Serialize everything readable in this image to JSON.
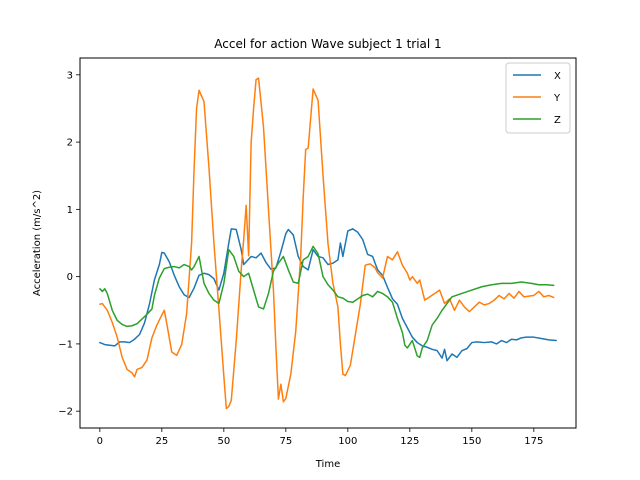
{
  "chart_data": {
    "type": "line",
    "title": "Accel for action Wave subject 1 trial 1",
    "xlabel": "Time",
    "ylabel": "Acceleration (m/s^2)",
    "xlim": [
      -8,
      192
    ],
    "ylim": [
      -2.25,
      3.25
    ],
    "xticks": [
      0,
      25,
      50,
      75,
      100,
      125,
      150,
      175
    ],
    "yticks": [
      -2,
      -1,
      0,
      1,
      2,
      3
    ],
    "grid": false,
    "legend_position": "top-right",
    "series": [
      {
        "name": "X",
        "color": "#1f77b4",
        "points": [
          [
            0,
            -0.98
          ],
          [
            2,
            -1.01
          ],
          [
            4,
            -1.02
          ],
          [
            6,
            -1.03
          ],
          [
            8,
            -0.97
          ],
          [
            10,
            -0.97
          ],
          [
            12,
            -0.98
          ],
          [
            14,
            -0.93
          ],
          [
            16,
            -0.86
          ],
          [
            18,
            -0.69
          ],
          [
            20,
            -0.41
          ],
          [
            22,
            -0.05
          ],
          [
            24,
            0.18
          ],
          [
            25,
            0.36
          ],
          [
            26,
            0.35
          ],
          [
            28,
            0.22
          ],
          [
            30,
            0.02
          ],
          [
            32,
            -0.15
          ],
          [
            34,
            -0.27
          ],
          [
            36,
            -0.31
          ],
          [
            38,
            -0.17
          ],
          [
            40,
            0.02
          ],
          [
            42,
            0.05
          ],
          [
            44,
            0.03
          ],
          [
            46,
            -0.03
          ],
          [
            48,
            -0.2
          ],
          [
            50,
            0.05
          ],
          [
            52,
            0.5
          ],
          [
            53,
            0.71
          ],
          [
            55,
            0.7
          ],
          [
            57,
            0.4
          ],
          [
            58,
            0.18
          ],
          [
            59,
            0.22
          ],
          [
            61,
            0.3
          ],
          [
            63,
            0.28
          ],
          [
            65,
            0.35
          ],
          [
            67,
            0.21
          ],
          [
            69,
            0.11
          ],
          [
            71,
            0.13
          ],
          [
            73,
            0.37
          ],
          [
            75,
            0.64
          ],
          [
            76,
            0.7
          ],
          [
            78,
            0.62
          ],
          [
            80,
            0.3
          ],
          [
            82,
            0.15
          ],
          [
            84,
            0.1
          ],
          [
            86,
            0.4
          ],
          [
            88,
            0.3
          ],
          [
            90,
            0.28
          ],
          [
            92,
            0.18
          ],
          [
            94,
            0.2
          ],
          [
            96,
            0.25
          ],
          [
            97,
            0.5
          ],
          [
            98,
            0.3
          ],
          [
            100,
            0.68
          ],
          [
            102,
            0.71
          ],
          [
            104,
            0.66
          ],
          [
            106,
            0.55
          ],
          [
            108,
            0.33
          ],
          [
            110,
            0.3
          ],
          [
            112,
            0.1
          ],
          [
            114,
            0.02
          ],
          [
            116,
            -0.16
          ],
          [
            118,
            -0.33
          ],
          [
            120,
            -0.41
          ],
          [
            122,
            -0.62
          ],
          [
            124,
            -0.76
          ],
          [
            126,
            -0.9
          ],
          [
            128,
            -0.98
          ],
          [
            130,
            -1.03
          ],
          [
            132,
            -1.05
          ],
          [
            134,
            -1.08
          ],
          [
            136,
            -1.1
          ],
          [
            138,
            -1.21
          ],
          [
            139,
            -1.08
          ],
          [
            140,
            -1.25
          ],
          [
            142,
            -1.15
          ],
          [
            144,
            -1.2
          ],
          [
            146,
            -1.1
          ],
          [
            148,
            -1.07
          ],
          [
            150,
            -0.98
          ],
          [
            152,
            -0.97
          ],
          [
            155,
            -0.98
          ],
          [
            158,
            -0.97
          ],
          [
            160,
            -1.0
          ],
          [
            162,
            -0.95
          ],
          [
            164,
            -0.98
          ],
          [
            166,
            -0.93
          ],
          [
            168,
            -0.94
          ],
          [
            170,
            -0.91
          ],
          [
            172,
            -0.9
          ],
          [
            175,
            -0.9
          ],
          [
            178,
            -0.92
          ],
          [
            181,
            -0.94
          ],
          [
            184,
            -0.95
          ]
        ]
      },
      {
        "name": "Y",
        "color": "#ff7f0e",
        "points": [
          [
            0,
            -0.41
          ],
          [
            1,
            -0.4
          ],
          [
            3,
            -0.5
          ],
          [
            5,
            -0.68
          ],
          [
            7,
            -0.9
          ],
          [
            9,
            -1.2
          ],
          [
            11,
            -1.38
          ],
          [
            13,
            -1.43
          ],
          [
            14,
            -1.49
          ],
          [
            15,
            -1.38
          ],
          [
            17,
            -1.35
          ],
          [
            19,
            -1.24
          ],
          [
            21,
            -0.91
          ],
          [
            23,
            -0.72
          ],
          [
            25,
            -0.57
          ],
          [
            26,
            -0.5
          ],
          [
            27,
            -0.7
          ],
          [
            29,
            -1.12
          ],
          [
            31,
            -1.17
          ],
          [
            33,
            -1.01
          ],
          [
            35,
            -0.55
          ],
          [
            37,
            0.5
          ],
          [
            38,
            1.6
          ],
          [
            39,
            2.5
          ],
          [
            40,
            2.77
          ],
          [
            42,
            2.6
          ],
          [
            44,
            1.62
          ],
          [
            46,
            0.5
          ],
          [
            48,
            -0.48
          ],
          [
            50,
            -1.48
          ],
          [
            51,
            -1.96
          ],
          [
            52,
            -1.93
          ],
          [
            53,
            -1.84
          ],
          [
            55,
            -0.95
          ],
          [
            57,
            0.1
          ],
          [
            58,
            0.55
          ],
          [
            59,
            1.06
          ],
          [
            60,
            0.31
          ],
          [
            61,
            1.99
          ],
          [
            62,
            2.5
          ],
          [
            63,
            2.93
          ],
          [
            64,
            2.95
          ],
          [
            66,
            2.22
          ],
          [
            68,
            1.0
          ],
          [
            70,
            -0.2
          ],
          [
            71,
            -1.05
          ],
          [
            72,
            -1.82
          ],
          [
            73,
            -1.6
          ],
          [
            74,
            -1.86
          ],
          [
            75,
            -1.81
          ],
          [
            77,
            -1.45
          ],
          [
            79,
            -0.81
          ],
          [
            81,
            0.31
          ],
          [
            82,
            1.18
          ],
          [
            83,
            1.89
          ],
          [
            84,
            1.91
          ],
          [
            86,
            2.79
          ],
          [
            88,
            2.62
          ],
          [
            90,
            1.5
          ],
          [
            92,
            0.49
          ],
          [
            94,
            -0.1
          ],
          [
            96,
            -0.45
          ],
          [
            97,
            -1.0
          ],
          [
            98,
            -1.45
          ],
          [
            99,
            -1.47
          ],
          [
            101,
            -1.32
          ],
          [
            103,
            -0.87
          ],
          [
            105,
            -0.42
          ],
          [
            107,
            0.17
          ],
          [
            109,
            0.19
          ],
          [
            111,
            0.13
          ],
          [
            112,
            0.06
          ],
          [
            114,
            -0.02
          ],
          [
            116,
            0.3
          ],
          [
            118,
            0.25
          ],
          [
            120,
            0.37
          ],
          [
            122,
            0.17
          ],
          [
            124,
            0.05
          ],
          [
            125,
            -0.05
          ],
          [
            126,
            0.0
          ],
          [
            128,
            -0.1
          ],
          [
            129,
            -0.05
          ],
          [
            131,
            -0.35
          ],
          [
            133,
            -0.3
          ],
          [
            135,
            -0.25
          ],
          [
            137,
            -0.2
          ],
          [
            139,
            -0.4
          ],
          [
            141,
            -0.33
          ],
          [
            143,
            -0.5
          ],
          [
            145,
            -0.35
          ],
          [
            147,
            -0.45
          ],
          [
            149,
            -0.52
          ],
          [
            151,
            -0.45
          ],
          [
            153,
            -0.38
          ],
          [
            155,
            -0.42
          ],
          [
            157,
            -0.4
          ],
          [
            159,
            -0.35
          ],
          [
            161,
            -0.28
          ],
          [
            163,
            -0.33
          ],
          [
            165,
            -0.25
          ],
          [
            167,
            -0.32
          ],
          [
            169,
            -0.22
          ],
          [
            171,
            -0.3
          ],
          [
            173,
            -0.29
          ],
          [
            175,
            -0.28
          ],
          [
            177,
            -0.22
          ],
          [
            179,
            -0.3
          ],
          [
            181,
            -0.28
          ],
          [
            183,
            -0.31
          ]
        ]
      },
      {
        "name": "Z",
        "color": "#2ca02c",
        "points": [
          [
            0,
            -0.18
          ],
          [
            1,
            -0.22
          ],
          [
            2,
            -0.18
          ],
          [
            3,
            -0.25
          ],
          [
            5,
            -0.5
          ],
          [
            7,
            -0.65
          ],
          [
            9,
            -0.71
          ],
          [
            11,
            -0.74
          ],
          [
            13,
            -0.73
          ],
          [
            15,
            -0.7
          ],
          [
            17,
            -0.63
          ],
          [
            19,
            -0.56
          ],
          [
            21,
            -0.48
          ],
          [
            22,
            -0.28
          ],
          [
            24,
            -0.02
          ],
          [
            26,
            0.12
          ],
          [
            28,
            0.14
          ],
          [
            30,
            0.15
          ],
          [
            32,
            0.13
          ],
          [
            34,
            0.18
          ],
          [
            36,
            0.15
          ],
          [
            37,
            0.1
          ],
          [
            38,
            0.15
          ],
          [
            40,
            0.3
          ],
          [
            42,
            -0.1
          ],
          [
            44,
            -0.25
          ],
          [
            46,
            -0.35
          ],
          [
            48,
            -0.4
          ],
          [
            50,
            -0.1
          ],
          [
            52,
            0.4
          ],
          [
            54,
            0.3
          ],
          [
            56,
            0.08
          ],
          [
            58,
            0.0
          ],
          [
            60,
            0.05
          ],
          [
            62,
            -0.2
          ],
          [
            64,
            -0.45
          ],
          [
            66,
            -0.48
          ],
          [
            68,
            -0.25
          ],
          [
            70,
            0.08
          ],
          [
            72,
            0.2
          ],
          [
            74,
            0.3
          ],
          [
            76,
            0.1
          ],
          [
            78,
            -0.08
          ],
          [
            80,
            -0.1
          ],
          [
            82,
            0.25
          ],
          [
            84,
            0.3
          ],
          [
            86,
            0.45
          ],
          [
            88,
            0.34
          ],
          [
            90,
            0.0
          ],
          [
            92,
            -0.12
          ],
          [
            94,
            -0.2
          ],
          [
            96,
            -0.3
          ],
          [
            98,
            -0.32
          ],
          [
            100,
            -0.37
          ],
          [
            102,
            -0.38
          ],
          [
            104,
            -0.33
          ],
          [
            106,
            -0.28
          ],
          [
            108,
            -0.26
          ],
          [
            110,
            -0.3
          ],
          [
            112,
            -0.22
          ],
          [
            114,
            -0.25
          ],
          [
            116,
            -0.3
          ],
          [
            118,
            -0.38
          ],
          [
            120,
            -0.62
          ],
          [
            122,
            -0.83
          ],
          [
            123,
            -1.02
          ],
          [
            124,
            -1.06
          ],
          [
            126,
            -0.95
          ],
          [
            128,
            -1.18
          ],
          [
            129,
            -1.2
          ],
          [
            130,
            -1.06
          ],
          [
            132,
            -0.95
          ],
          [
            134,
            -0.72
          ],
          [
            136,
            -0.62
          ],
          [
            138,
            -0.5
          ],
          [
            140,
            -0.4
          ],
          [
            142,
            -0.3
          ],
          [
            146,
            -0.25
          ],
          [
            150,
            -0.2
          ],
          [
            154,
            -0.15
          ],
          [
            158,
            -0.12
          ],
          [
            162,
            -0.1
          ],
          [
            166,
            -0.1
          ],
          [
            170,
            -0.08
          ],
          [
            174,
            -0.1
          ],
          [
            177,
            -0.12
          ],
          [
            180,
            -0.12
          ],
          [
            183,
            -0.13
          ]
        ]
      }
    ]
  }
}
